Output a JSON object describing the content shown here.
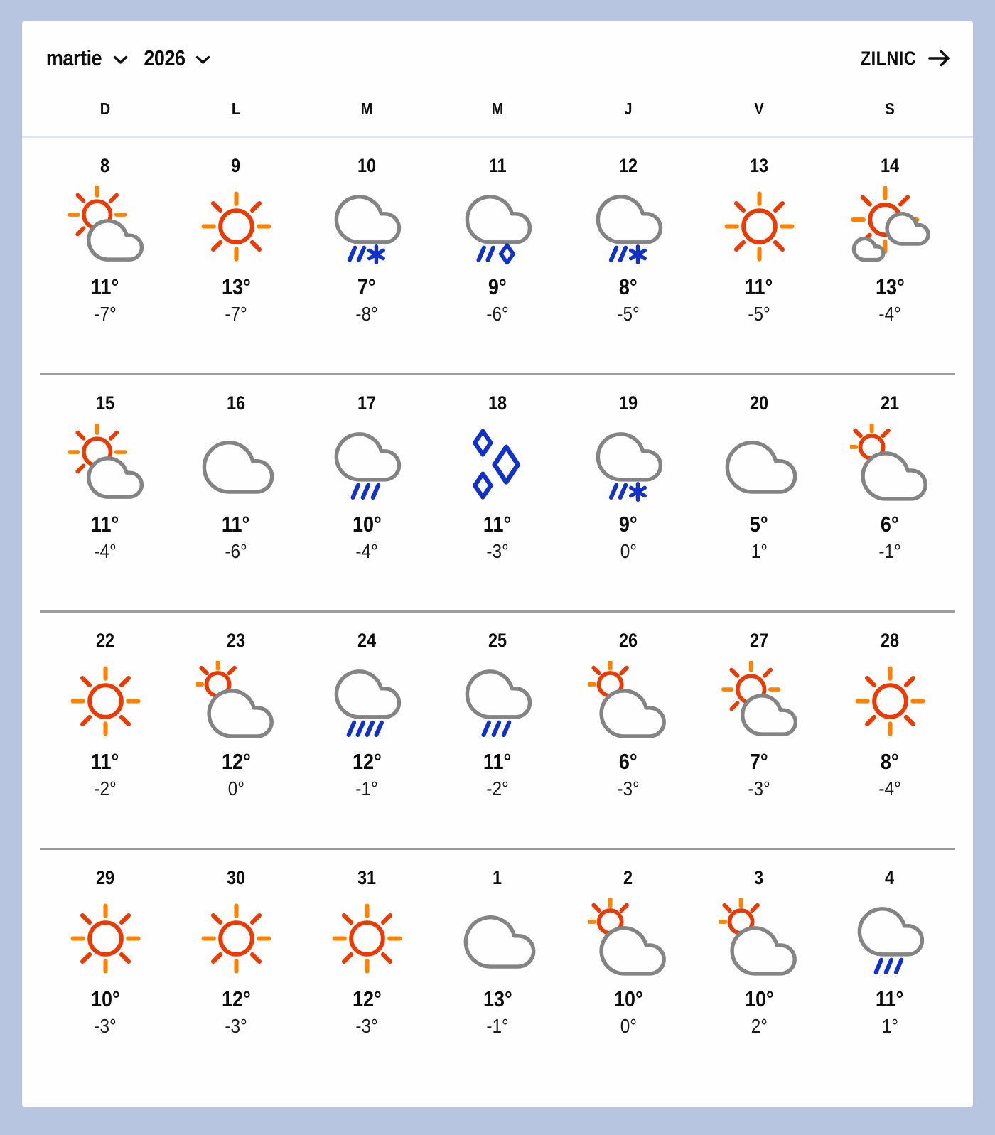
{
  "header": {
    "month_label": "martie",
    "year_label": "2026",
    "daily_link_label": "ZILNIC"
  },
  "day_headers": [
    "D",
    "L",
    "M",
    "M",
    "J",
    "V",
    "S"
  ],
  "colors": {
    "background": "#b7c5e0",
    "card": "#fefefe",
    "text": "#0d0d0d",
    "sun_red": "#ee3a00",
    "sun_orange": "#ff8200",
    "cloud_gray": "#848484",
    "precip_blue": "#1031cc",
    "week_divider": "#9d9d9d",
    "header_divider": "#dfe4f2"
  },
  "weeks": [
    [
      {
        "day": "8",
        "icon": "sun-cloud",
        "high": "11°",
        "low": "-7°"
      },
      {
        "day": "9",
        "icon": "sun",
        "high": "13°",
        "low": "-7°"
      },
      {
        "day": "10",
        "icon": "cloud-rain-snow",
        "high": "7°",
        "low": "-8°"
      },
      {
        "day": "11",
        "icon": "cloud-rain-hail",
        "high": "9°",
        "low": "-6°"
      },
      {
        "day": "12",
        "icon": "cloud-rain-snow",
        "high": "8°",
        "low": "-5°"
      },
      {
        "day": "13",
        "icon": "sun",
        "high": "11°",
        "low": "-5°"
      },
      {
        "day": "14",
        "icon": "sun-two-clouds",
        "high": "13°",
        "low": "-4°"
      }
    ],
    [
      {
        "day": "15",
        "icon": "sun-cloud",
        "high": "11°",
        "low": "-4°"
      },
      {
        "day": "16",
        "icon": "cloud",
        "high": "11°",
        "low": "-6°"
      },
      {
        "day": "17",
        "icon": "cloud-rain",
        "high": "10°",
        "low": "-4°"
      },
      {
        "day": "18",
        "icon": "ice-diamonds",
        "high": "11°",
        "low": "-3°"
      },
      {
        "day": "19",
        "icon": "cloud-rain-snow",
        "high": "9°",
        "low": "0°"
      },
      {
        "day": "20",
        "icon": "cloud",
        "high": "5°",
        "low": "1°"
      },
      {
        "day": "21",
        "icon": "mostly-cloudy",
        "high": "6°",
        "low": "-1°"
      }
    ],
    [
      {
        "day": "22",
        "icon": "sun",
        "high": "11°",
        "low": "-2°"
      },
      {
        "day": "23",
        "icon": "mostly-cloudy",
        "high": "12°",
        "low": "0°"
      },
      {
        "day": "24",
        "icon": "cloud-heavy-rain",
        "high": "12°",
        "low": "-1°"
      },
      {
        "day": "25",
        "icon": "cloud-rain",
        "high": "11°",
        "low": "-2°"
      },
      {
        "day": "26",
        "icon": "mostly-cloudy",
        "high": "6°",
        "low": "-3°"
      },
      {
        "day": "27",
        "icon": "sun-cloud",
        "high": "7°",
        "low": "-3°"
      },
      {
        "day": "28",
        "icon": "sun",
        "high": "8°",
        "low": "-4°"
      }
    ],
    [
      {
        "day": "29",
        "icon": "sun",
        "high": "10°",
        "low": "-3°"
      },
      {
        "day": "30",
        "icon": "sun",
        "high": "12°",
        "low": "-3°"
      },
      {
        "day": "31",
        "icon": "sun",
        "high": "12°",
        "low": "-3°"
      },
      {
        "day": "1",
        "icon": "cloud",
        "high": "13°",
        "low": "-1°"
      },
      {
        "day": "2",
        "icon": "mostly-cloudy",
        "high": "10°",
        "low": "0°"
      },
      {
        "day": "3",
        "icon": "mostly-cloudy",
        "high": "10°",
        "low": "2°"
      },
      {
        "day": "4",
        "icon": "cloud-rain",
        "high": "11°",
        "low": "1°"
      }
    ]
  ]
}
